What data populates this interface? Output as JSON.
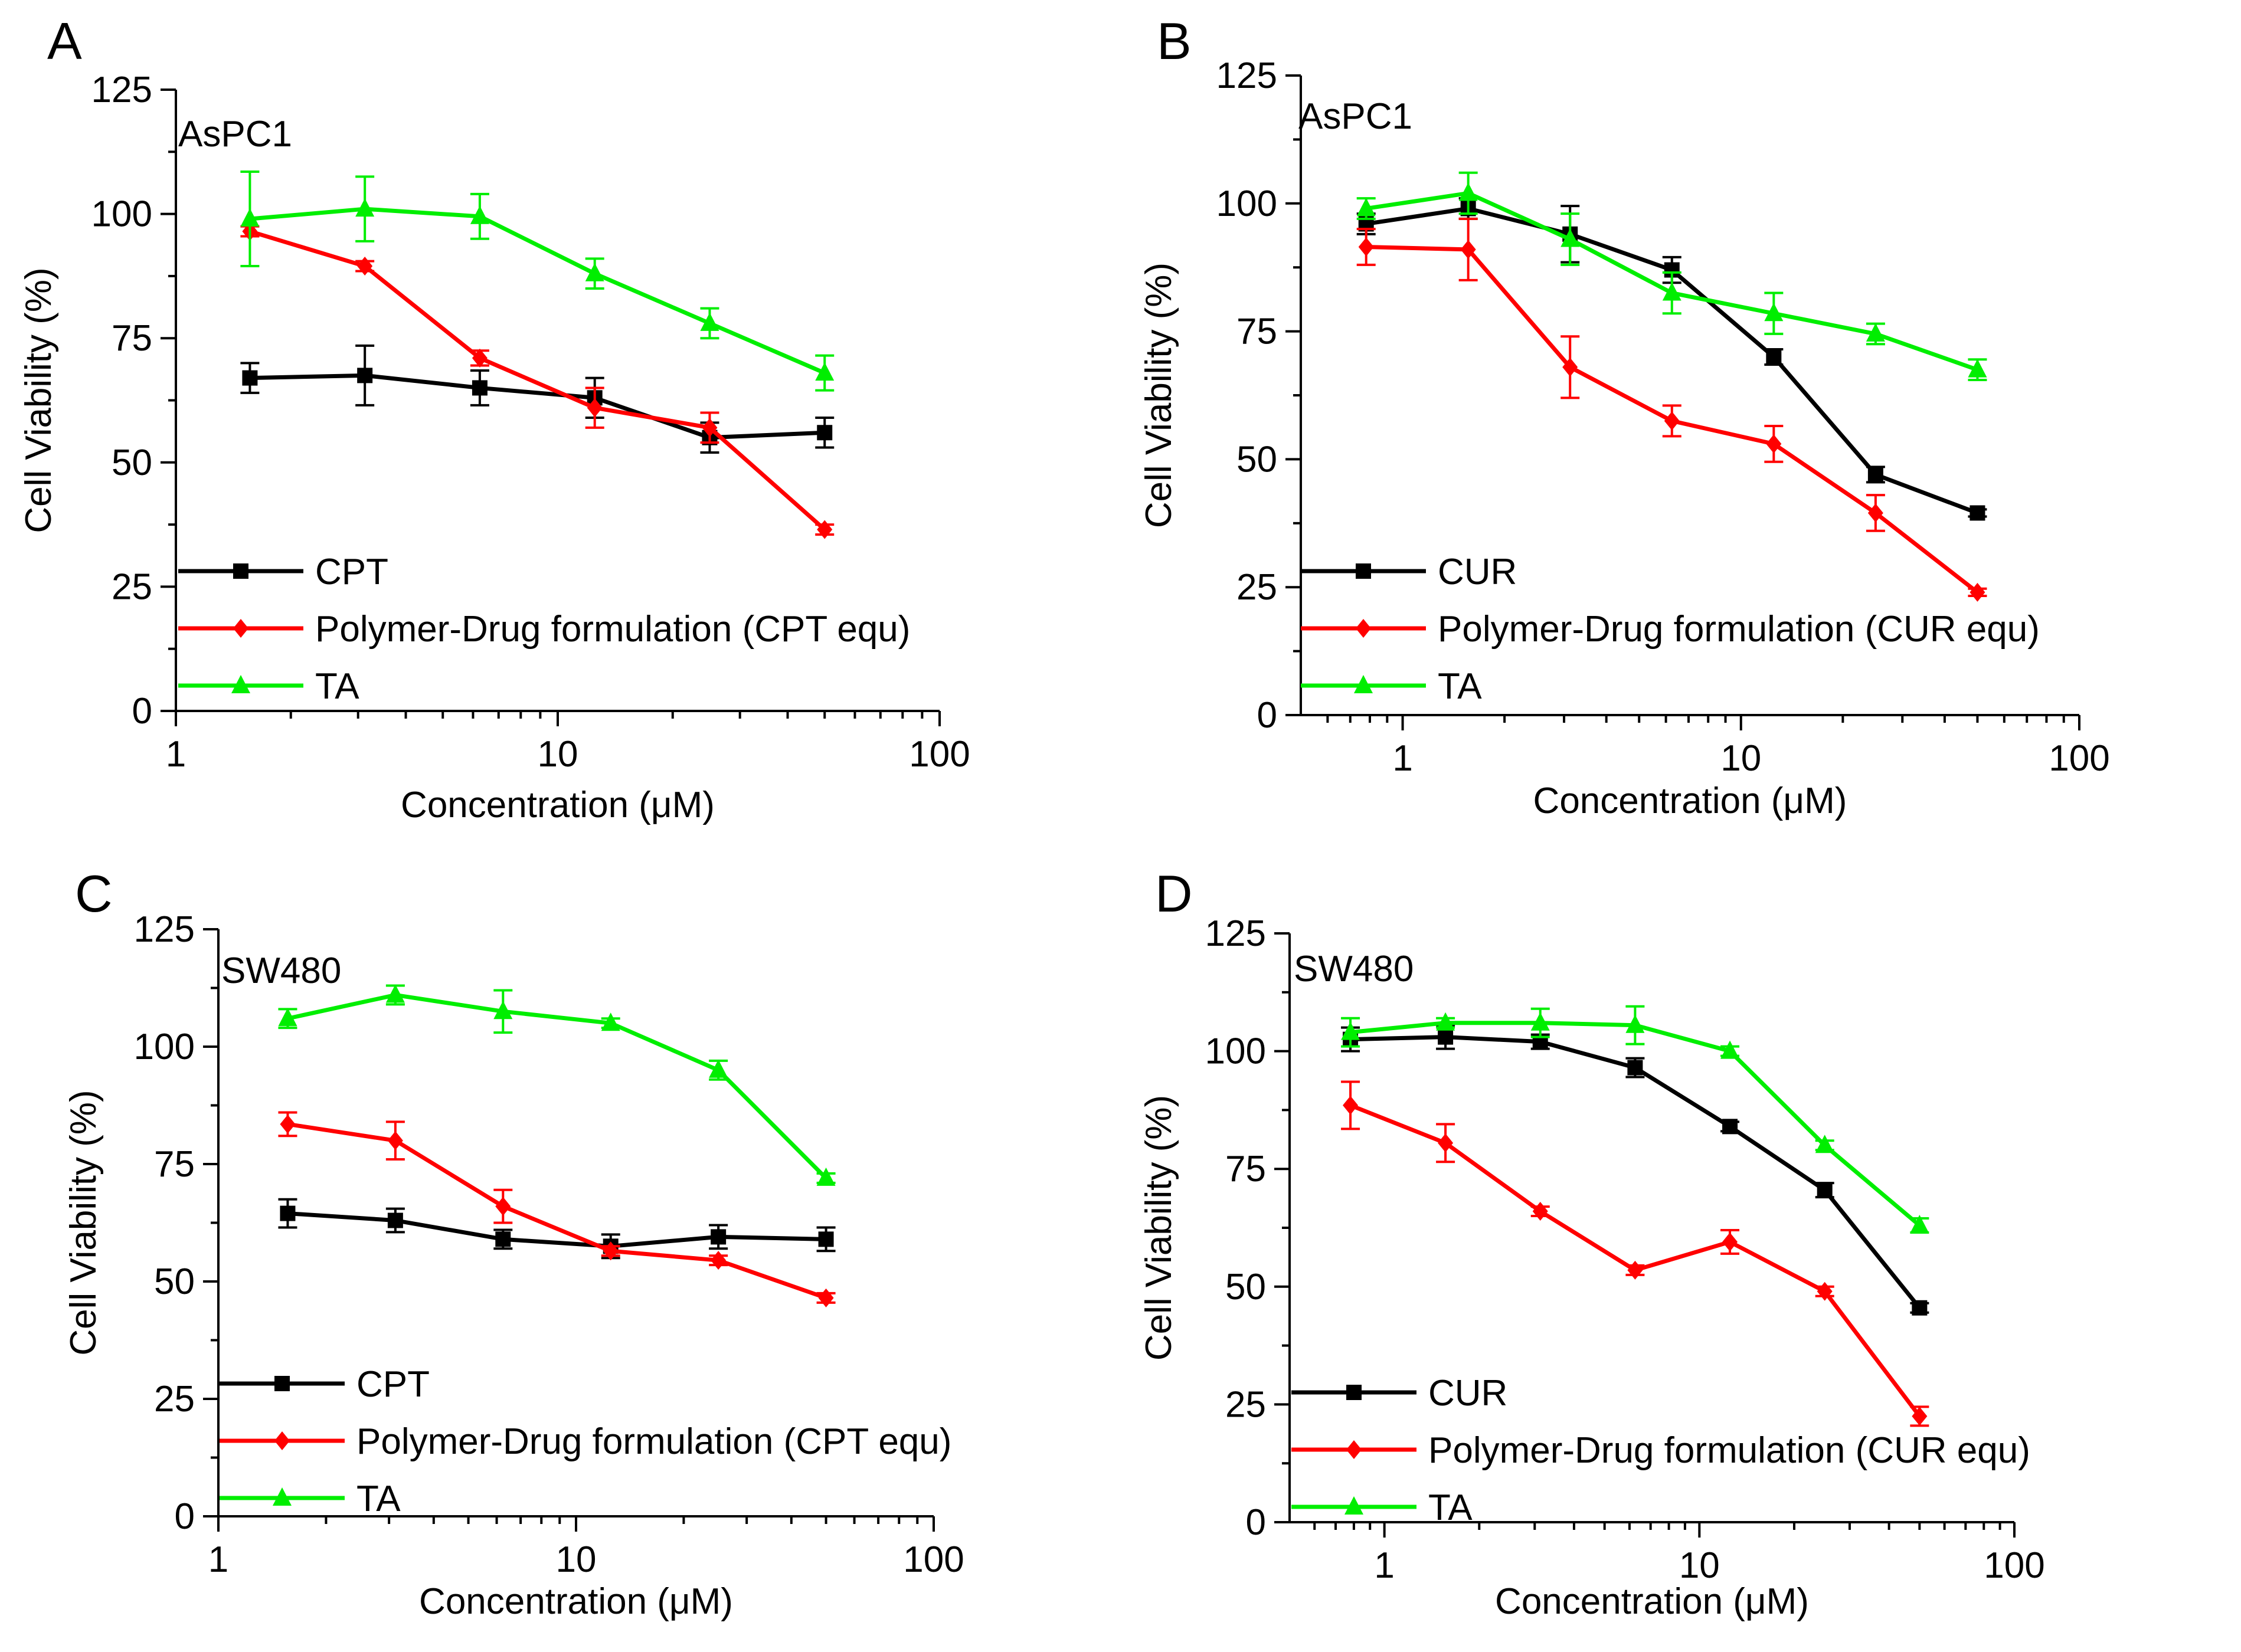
{
  "chart_data": [
    {
      "panel_label": "A",
      "type": "line",
      "cell_line": "AsPC1",
      "xlabel": "Concentration (μM)",
      "ylabel": "Cell Viability (%)",
      "xscale": "log",
      "xlim": [
        1,
        100
      ],
      "ylim": [
        0,
        125
      ],
      "xticks": [
        1,
        10,
        100
      ],
      "xtick_labels": [
        "1",
        "10",
        "100"
      ],
      "yticks": [
        0,
        25,
        50,
        75,
        100,
        125
      ],
      "ytick_labels": [
        "0",
        "25",
        "50",
        "75",
        "100",
        "125"
      ],
      "legend_position": "bottom-left",
      "series": [
        {
          "name": "CPT",
          "color": "#000000",
          "marker": "square",
          "x": [
            1.5625,
            3.125,
            6.25,
            12.5,
            25,
            50
          ],
          "y": [
            67,
            67.5,
            65,
            63,
            55,
            56
          ],
          "err": [
            3,
            6,
            3.5,
            4,
            3,
            3
          ]
        },
        {
          "name": "Polymer-Drug formulation (CPT equ)",
          "color": "#ff0000",
          "marker": "diamond",
          "x": [
            1.5625,
            3.125,
            6.25,
            12.5,
            25,
            50
          ],
          "y": [
            96.5,
            89.5,
            71,
            61,
            57,
            36.5
          ],
          "err": [
            1,
            1,
            1.5,
            4,
            3,
            1
          ]
        },
        {
          "name": "TA",
          "color": "#00ee00",
          "marker": "triangle",
          "x": [
            1.5625,
            3.125,
            6.25,
            12.5,
            25,
            50
          ],
          "y": [
            99,
            101,
            99.5,
            88,
            78,
            68
          ],
          "err": [
            9.5,
            6.5,
            4.5,
            3,
            3,
            3.5
          ]
        }
      ]
    },
    {
      "panel_label": "B",
      "type": "line",
      "cell_line": "AsPC1",
      "xlabel": "Concentration (μM)",
      "ylabel": "Cell Viability (%)",
      "xscale": "log",
      "xlim": [
        0.5,
        100
      ],
      "ylim": [
        0,
        125
      ],
      "xticks": [
        1,
        10,
        100
      ],
      "xtick_labels": [
        "1",
        "10",
        "100"
      ],
      "yticks": [
        0,
        25,
        50,
        75,
        100,
        125
      ],
      "ytick_labels": [
        "0",
        "25",
        "50",
        "75",
        "100",
        "125"
      ],
      "legend_position": "bottom-left",
      "series": [
        {
          "name": "CUR",
          "color": "#000000",
          "marker": "square",
          "x": [
            0.78,
            1.5625,
            3.125,
            6.25,
            12.5,
            25,
            50
          ],
          "y": [
            96,
            99,
            94,
            87,
            70,
            47,
            39.5
          ],
          "err": [
            2,
            2,
            5.5,
            2.5,
            1.5,
            1.5,
            0.7
          ]
        },
        {
          "name": "Polymer-Drug formulation (CUR equ)",
          "color": "#ff0000",
          "marker": "diamond",
          "x": [
            0.78,
            1.5625,
            3.125,
            6.25,
            12.5,
            25,
            50
          ],
          "y": [
            91.5,
            91,
            68,
            57.5,
            53,
            39.5,
            24
          ],
          "err": [
            3.5,
            6,
            6,
            3,
            3.5,
            3.5,
            0.7
          ]
        },
        {
          "name": "TA",
          "color": "#00ee00",
          "marker": "triangle",
          "x": [
            0.78,
            1.5625,
            3.125,
            6.25,
            12.5,
            25,
            50
          ],
          "y": [
            99,
            102,
            93,
            82.5,
            78.5,
            74.5,
            67.5
          ],
          "err": [
            2,
            4,
            5,
            4,
            4,
            2,
            2
          ]
        }
      ]
    },
    {
      "panel_label": "C",
      "type": "line",
      "cell_line": "SW480",
      "xlabel": "Concentration (μM)",
      "ylabel": "Cell Viability (%)",
      "xscale": "log",
      "xlim": [
        1,
        100
      ],
      "ylim": [
        0,
        125
      ],
      "xticks": [
        1,
        10,
        100
      ],
      "xtick_labels": [
        "1",
        "10",
        "100"
      ],
      "yticks": [
        0,
        25,
        50,
        75,
        100,
        125
      ],
      "ytick_labels": [
        "0",
        "25",
        "50",
        "75",
        "100",
        "125"
      ],
      "legend_position": "bottom-left",
      "series": [
        {
          "name": "CPT",
          "color": "#000000",
          "marker": "square",
          "x": [
            1.5625,
            3.125,
            6.25,
            12.5,
            25,
            50
          ],
          "y": [
            64.5,
            63,
            59,
            57.5,
            59.5,
            59
          ],
          "err": [
            3,
            2.5,
            2,
            2.5,
            2.5,
            2.5
          ]
        },
        {
          "name": "Polymer-Drug formulation (CPT equ)",
          "color": "#ff0000",
          "marker": "diamond",
          "x": [
            1.5625,
            3.125,
            6.25,
            12.5,
            25,
            50
          ],
          "y": [
            83.5,
            80,
            66,
            56.5,
            54.5,
            46.5
          ],
          "err": [
            2.5,
            4,
            3.5,
            1,
            1,
            1
          ]
        },
        {
          "name": "TA",
          "color": "#00ee00",
          "marker": "triangle",
          "x": [
            1.5625,
            3.125,
            6.25,
            12.5,
            25,
            50
          ],
          "y": [
            106,
            111,
            107.5,
            105,
            95,
            72
          ],
          "err": [
            2,
            2,
            4.5,
            1,
            2,
            1
          ]
        }
      ]
    },
    {
      "panel_label": "D",
      "type": "line",
      "cell_line": "SW480",
      "xlabel": "Concentration (μM)",
      "ylabel": "Cell Viability (%)",
      "xscale": "log",
      "xlim": [
        0.5,
        100
      ],
      "ylim": [
        0,
        125
      ],
      "xticks": [
        1,
        10,
        100
      ],
      "xtick_labels": [
        "1",
        "10",
        "100"
      ],
      "yticks": [
        0,
        25,
        50,
        75,
        100,
        125
      ],
      "ytick_labels": [
        "0",
        "25",
        "50",
        "75",
        "100",
        "125"
      ],
      "legend_position": "bottom-left",
      "series": [
        {
          "name": "CUR",
          "color": "#000000",
          "marker": "square",
          "x": [
            0.78,
            1.5625,
            3.125,
            6.25,
            12.5,
            25,
            50
          ],
          "y": [
            102.5,
            103,
            102,
            96.5,
            84,
            70.5,
            45.5
          ],
          "err": [
            2.5,
            2.5,
            1.5,
            2,
            1,
            1.5,
            1
          ]
        },
        {
          "name": "Polymer-Drug formulation (CUR equ)",
          "color": "#ff0000",
          "marker": "diamond",
          "x": [
            0.78,
            1.5625,
            3.125,
            6.25,
            12.5,
            25,
            50
          ],
          "y": [
            88.5,
            80.5,
            66,
            53.5,
            59.5,
            49,
            22.5
          ],
          "err": [
            5,
            4,
            1,
            1,
            2.5,
            1,
            2
          ]
        },
        {
          "name": "TA",
          "color": "#00ee00",
          "marker": "triangle",
          "x": [
            0.78,
            1.5625,
            3.125,
            6.25,
            12.5,
            25,
            50
          ],
          "y": [
            104,
            106,
            106,
            105.5,
            100,
            80,
            63
          ],
          "err": [
            3,
            1,
            3,
            4,
            1,
            1,
            1.5
          ]
        }
      ]
    }
  ]
}
